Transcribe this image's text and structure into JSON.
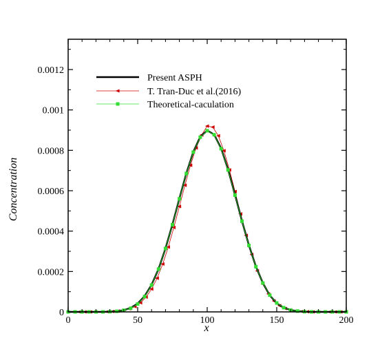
{
  "chart_data": {
    "type": "line",
    "xlabel": "x",
    "ylabel": "Concentration",
    "xlim": [
      0,
      200
    ],
    "ylim": [
      0,
      0.00135
    ],
    "xticks": [
      0,
      50,
      100,
      150,
      200
    ],
    "yticks": [
      0,
      0.0002,
      0.0004,
      0.0006,
      0.0008,
      0.001,
      0.0012
    ],
    "ytick_labels": [
      "0",
      "0.0002",
      "0.0004",
      "0.0006",
      "0.0008",
      "0.001",
      "0.0012"
    ],
    "grid": false,
    "legend_position": "top-left",
    "series": [
      {
        "name": "Present ASPH",
        "color": "#000000",
        "style": "thick-line",
        "x": [
          0,
          5,
          10,
          15,
          20,
          25,
          30,
          35,
          40,
          45,
          50,
          55,
          60,
          65,
          70,
          75,
          80,
          85,
          90,
          95,
          100,
          105,
          110,
          115,
          120,
          125,
          130,
          135,
          140,
          145,
          150,
          155,
          160,
          165,
          170,
          175,
          180,
          185,
          190,
          195,
          200
        ],
        "y": [
          0,
          0,
          0,
          0,
          0,
          0,
          1e-06,
          3e-06,
          8e-06,
          2e-05,
          4.1e-05,
          7.8e-05,
          0.000134,
          0.000212,
          0.000314,
          0.000433,
          0.000561,
          0.000686,
          0.000792,
          0.000867,
          0.000898,
          0.000878,
          0.00081,
          0.000705,
          0.00058,
          0.00045,
          0.00033,
          0.000225,
          0.000143,
          8.2e-05,
          4.3e-05,
          2.1e-05,
          9e-06,
          4e-06,
          1e-06,
          0,
          0,
          0,
          0,
          0,
          0
        ]
      },
      {
        "name": "T. Tran-Duc et al.(2016)",
        "color": "#cc0000",
        "style": "thin-line-left-triangle",
        "x": [
          0,
          4,
          8,
          12,
          16,
          20,
          24,
          28,
          32,
          36,
          40,
          44,
          48,
          52,
          56,
          60,
          64,
          68,
          72,
          76,
          80,
          84,
          88,
          92,
          96,
          100,
          104,
          108,
          112,
          116,
          120,
          124,
          128,
          132,
          136,
          140,
          144,
          148,
          152,
          156,
          160,
          164,
          168,
          172,
          176,
          180,
          184,
          188,
          192,
          196,
          200
        ],
        "y": [
          0,
          0,
          0,
          0,
          0,
          0,
          0,
          1e-06,
          2e-06,
          4e-06,
          8e-06,
          1.5e-05,
          2.6e-05,
          4.5e-05,
          7.3e-05,
          0.000113,
          0.000167,
          0.000237,
          0.000321,
          0.000418,
          0.000522,
          0.000627,
          0.000726,
          0.000812,
          0.000876,
          0.00092,
          0.000915,
          0.000872,
          0.000798,
          0.000703,
          0.000596,
          0.000485,
          0.000379,
          0.000284,
          0.000203,
          0.000138,
          8.9e-05,
          5.4e-05,
          3.1e-05,
          1.7e-05,
          9e-06,
          4e-06,
          2e-06,
          1e-06,
          0,
          0,
          0,
          0,
          0,
          0,
          0
        ]
      },
      {
        "name": "Theoretical-caculation",
        "color": "#33dd33",
        "style": "thin-line-square",
        "x": [
          0,
          5,
          10,
          15,
          20,
          25,
          30,
          35,
          40,
          45,
          50,
          55,
          60,
          65,
          70,
          75,
          80,
          85,
          90,
          95,
          100,
          105,
          110,
          115,
          120,
          125,
          130,
          135,
          140,
          145,
          150,
          155,
          160,
          165,
          170,
          175,
          180,
          185,
          190,
          195,
          200
        ],
        "y": [
          0,
          0,
          0,
          0,
          0,
          0,
          1e-06,
          3e-06,
          8e-06,
          1.8e-05,
          3.9e-05,
          7.6e-05,
          0.000133,
          0.000212,
          0.000314,
          0.000432,
          0.00056,
          0.000685,
          0.000791,
          0.000865,
          0.000897,
          0.000877,
          0.000808,
          0.000703,
          0.000578,
          0.000449,
          0.000329,
          0.000224,
          0.000143,
          8.3e-05,
          4.4e-05,
          2.1e-05,
          9e-06,
          4e-06,
          1e-06,
          0,
          0,
          0,
          0,
          0,
          0
        ]
      }
    ]
  }
}
